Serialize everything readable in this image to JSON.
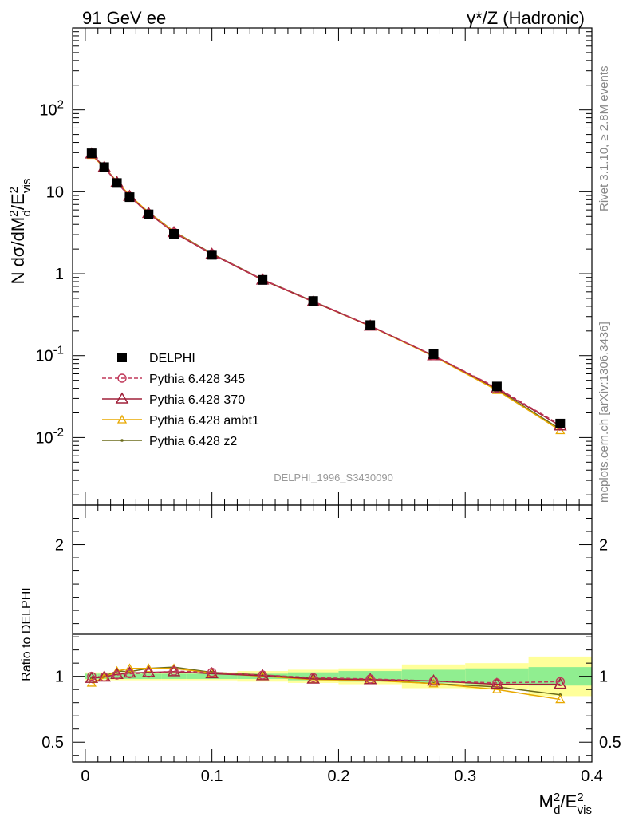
{
  "header": {
    "left": "91 GeV ee",
    "right": "γ*/Z (Hadronic)"
  },
  "side_labels": {
    "rivet": "Rivet 3.1.10, ≥ 2.8M events",
    "mcplots": "mcplots.cern.ch [arXiv:1306.3436]"
  },
  "watermark": "DELPHI_1996_S3430090",
  "colors": {
    "data": "#000000",
    "p345": "#c0385a",
    "p370": "#a0203a",
    "ambt1": "#e8a800",
    "z2": "#6b6b1a",
    "band_inner": "#90ee90",
    "band_outer": "#ffff9a"
  },
  "chart_data": [
    {
      "type": "scatter",
      "ylabel": "N dσ/dM_d^2/E_vis^2",
      "yscale": "log",
      "ylim": [
        0.0015,
        1000
      ],
      "xlim": [
        -0.01,
        0.4
      ],
      "yticks": [
        "10^-2",
        "10^-1",
        "1",
        "10",
        "10^2"
      ],
      "legend_position": "center-left",
      "x": [
        0.005,
        0.015,
        0.025,
        0.035,
        0.05,
        0.07,
        0.1,
        0.14,
        0.18,
        0.225,
        0.275,
        0.325,
        0.375
      ],
      "series": [
        {
          "name": "DELPHI",
          "key": "data",
          "values": [
            29.5,
            20.0,
            12.8,
            8.6,
            5.3,
            3.07,
            1.7,
            0.84,
            0.465,
            0.236,
            0.104,
            0.042,
            0.0148
          ]
        },
        {
          "name": "Pythia 6.428 345",
          "key": "p345",
          "values": [
            29.5,
            19.9,
            12.9,
            8.75,
            5.42,
            3.2,
            1.75,
            0.85,
            0.46,
            0.232,
            0.1,
            0.0405,
            0.0143
          ]
        },
        {
          "name": "Pythia 6.428 370",
          "key": "p370",
          "values": [
            29.0,
            19.9,
            13.0,
            8.8,
            5.45,
            3.18,
            1.73,
            0.84,
            0.455,
            0.23,
            0.1,
            0.0395,
            0.0139
          ]
        },
        {
          "name": "Pythia 6.428 ambt1",
          "key": "ambt1",
          "values": [
            28.0,
            19.8,
            13.3,
            9.1,
            5.6,
            3.25,
            1.74,
            0.84,
            0.454,
            0.229,
            0.098,
            0.0378,
            0.0122
          ]
        },
        {
          "name": "Pythia 6.428 z2",
          "key": "z2",
          "values": [
            29.0,
            20.0,
            13.3,
            8.9,
            5.63,
            3.28,
            1.76,
            0.85,
            0.46,
            0.231,
            0.0985,
            0.0385,
            0.0127
          ]
        }
      ]
    },
    {
      "type": "line",
      "ylabel": "Ratio to DELPHI",
      "xlabel": "M_d^2/E_vis^2",
      "ylim": [
        0.35,
        2.3
      ],
      "xlim": [
        -0.01,
        0.4
      ],
      "yticks": [
        "0.5",
        "1",
        "2"
      ],
      "xticks": [
        "0",
        "0.1",
        "0.2",
        "0.3",
        "0.4"
      ],
      "x": [
        0.005,
        0.015,
        0.025,
        0.035,
        0.05,
        0.07,
        0.1,
        0.14,
        0.18,
        0.225,
        0.275,
        0.325,
        0.375
      ],
      "band_edges": [
        0,
        0.01,
        0.02,
        0.03,
        0.04,
        0.06,
        0.08,
        0.12,
        0.16,
        0.2,
        0.25,
        0.3,
        0.35,
        0.4
      ],
      "band_inner": [
        0.02,
        0.02,
        0.02,
        0.02,
        0.02,
        0.02,
        0.02,
        0.02,
        0.03,
        0.04,
        0.05,
        0.06,
        0.07
      ],
      "band_outer": [
        0.03,
        0.03,
        0.03,
        0.03,
        0.03,
        0.03,
        0.03,
        0.04,
        0.05,
        0.06,
        0.09,
        0.1,
        0.15
      ],
      "series": [
        {
          "name": "Pythia 6.428 345",
          "key": "p345",
          "values": [
            1.0,
            0.995,
            1.01,
            1.02,
            1.025,
            1.04,
            1.03,
            1.01,
            0.99,
            0.98,
            0.965,
            0.95,
            0.96
          ]
        },
        {
          "name": "Pythia 6.428 370",
          "key": "p370",
          "values": [
            0.985,
            0.995,
            1.015,
            1.025,
            1.03,
            1.035,
            1.02,
            1.005,
            0.98,
            0.975,
            0.965,
            0.94,
            0.94
          ]
        },
        {
          "name": "Pythia 6.428 ambt1",
          "key": "ambt1",
          "values": [
            0.95,
            0.99,
            1.04,
            1.06,
            1.06,
            1.06,
            1.025,
            1.0,
            0.975,
            0.97,
            0.945,
            0.9,
            0.825
          ]
        },
        {
          "name": "Pythia 6.428 z2",
          "key": "z2",
          "values": [
            0.985,
            1.0,
            1.04,
            1.035,
            1.06,
            1.07,
            1.03,
            1.01,
            0.985,
            0.975,
            0.945,
            0.92,
            0.86
          ]
        }
      ]
    }
  ]
}
